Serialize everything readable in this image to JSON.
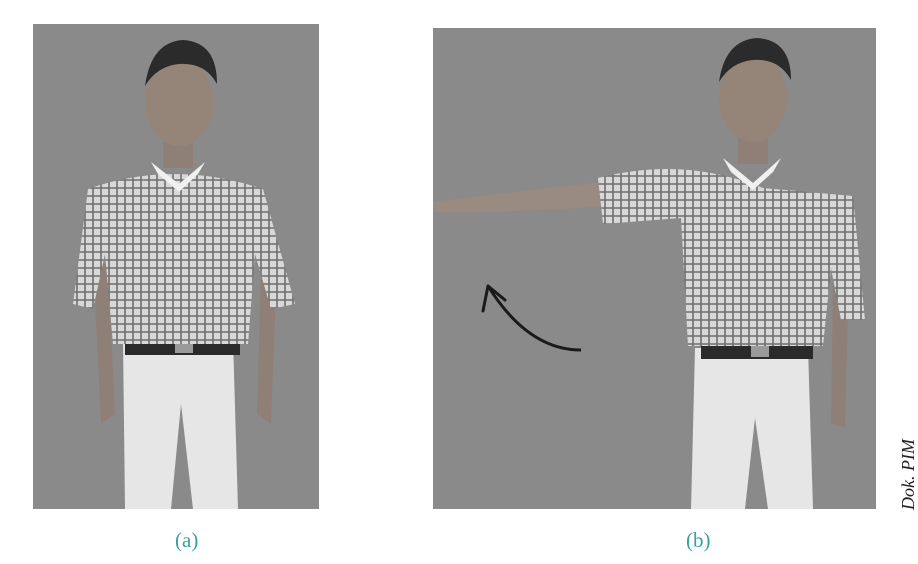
{
  "figure": {
    "panels": [
      {
        "label": "(a)",
        "description_icon": "person-standing-arms-down"
      },
      {
        "label": "(b)",
        "description_icon": "person-standing-arm-raised-sideways"
      }
    ],
    "credit": "Dok. PIM",
    "colors": {
      "photo_background": "#8a8a8a",
      "caption": "#3aa0a6",
      "arrow": "#1a1a1a"
    }
  }
}
